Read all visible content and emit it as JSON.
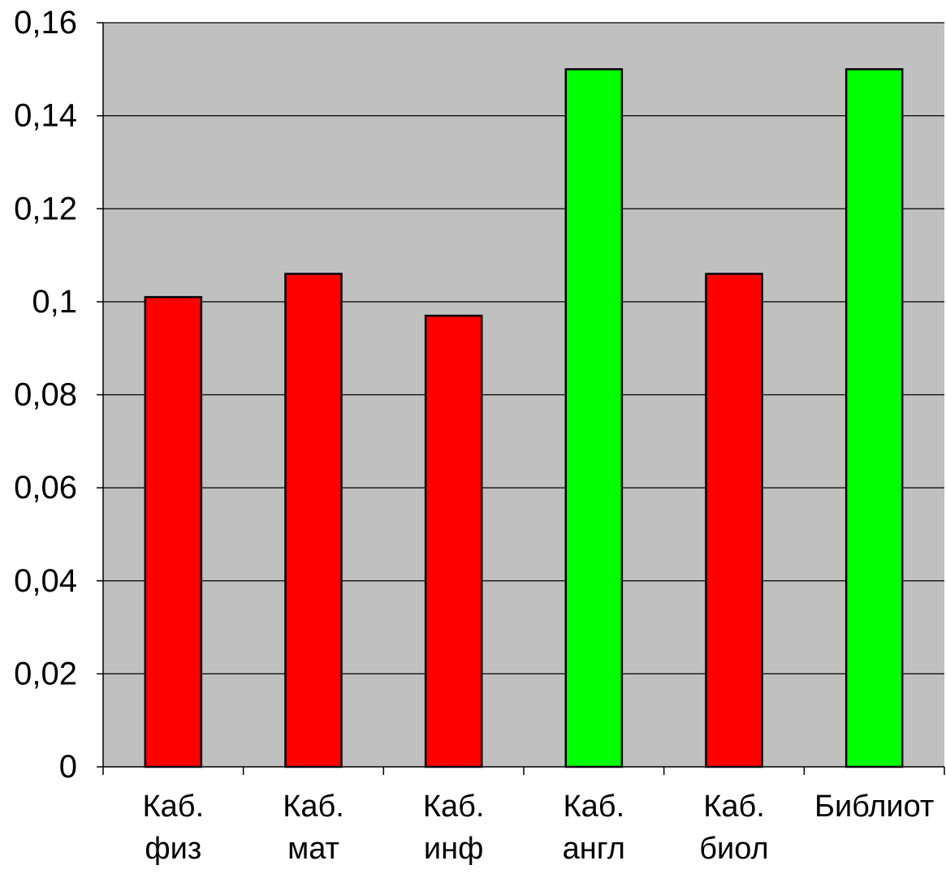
{
  "chart_data": {
    "type": "bar",
    "categories": [
      [
        "Каб.",
        "физ"
      ],
      [
        "Каб.",
        "мат"
      ],
      [
        "Каб.",
        "инф"
      ],
      [
        "Каб.",
        "англ"
      ],
      [
        "Каб.",
        "биол"
      ],
      [
        "Библиот"
      ]
    ],
    "values": [
      0.101,
      0.106,
      0.097,
      0.15,
      0.106,
      0.15
    ],
    "bar_colors": [
      "#ff0000",
      "#ff0000",
      "#ff0000",
      "#00ff00",
      "#ff0000",
      "#00ff00"
    ],
    "ylim": [
      0,
      0.16
    ],
    "yticks": [
      0,
      0.02,
      0.04,
      0.06,
      0.08,
      0.1,
      0.12,
      0.14,
      0.16
    ],
    "ytick_labels": [
      "0",
      "0,02",
      "0,04",
      "0,06",
      "0,08",
      "0,1",
      "0,12",
      "0,14",
      "0,16"
    ],
    "title": "",
    "xlabel": "",
    "ylabel": "",
    "grid": true,
    "legend": "none",
    "plot_background": "#c0c0c0",
    "bar_outline_color": "#000000",
    "grid_color": "#000000"
  }
}
